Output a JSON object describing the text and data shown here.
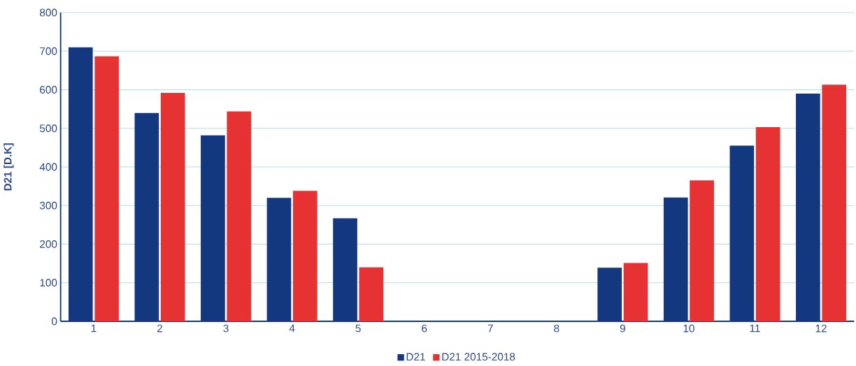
{
  "chart_data": {
    "type": "bar",
    "ylabel": "D21 [D.K]",
    "categories": [
      "1",
      "2",
      "3",
      "4",
      "5",
      "6",
      "7",
      "8",
      "9",
      "10",
      "11",
      "12"
    ],
    "series": [
      {
        "name": "D21",
        "color": "#14387f",
        "values": [
          710,
          540,
          482,
          320,
          267,
          0,
          0,
          0,
          139,
          321,
          455,
          590
        ]
      },
      {
        "name": "D21 2015-2018",
        "color": "#e63232",
        "values": [
          687,
          592,
          544,
          338,
          140,
          0,
          0,
          0,
          151,
          365,
          503,
          613
        ]
      }
    ],
    "ylim": [
      0,
      800
    ],
    "yticks": [
      0,
      100,
      200,
      300,
      400,
      500,
      600,
      700,
      800
    ],
    "grid": "y",
    "legend": "bottom"
  }
}
